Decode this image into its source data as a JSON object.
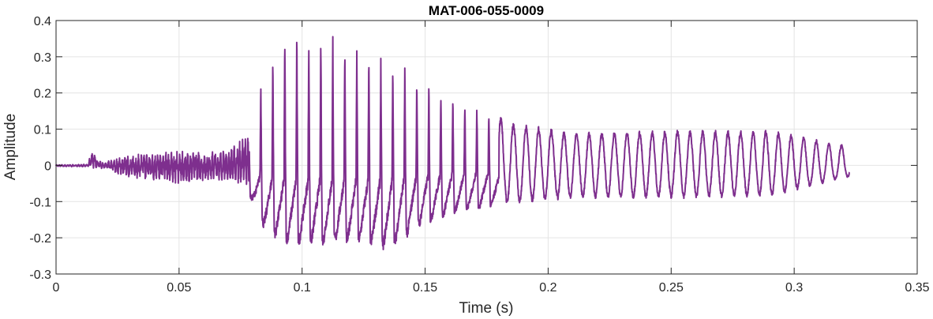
{
  "chart_data": {
    "type": "line",
    "title": "MAT-006-055-0009",
    "xlabel": "Time (s)",
    "ylabel": "Amplitude",
    "xlim": [
      0,
      0.35
    ],
    "ylim": [
      -0.3,
      0.4
    ],
    "xticks": [
      0,
      0.05,
      0.1,
      0.15,
      0.2,
      0.25,
      0.3,
      0.35
    ],
    "xtick_labels": [
      "0",
      "0.05",
      "0.1",
      "0.15",
      "0.2",
      "0.25",
      "0.3",
      "0.35"
    ],
    "yticks": [
      -0.3,
      -0.2,
      -0.1,
      0,
      0.1,
      0.2,
      0.3,
      0.4
    ],
    "ytick_labels": [
      "-0.3",
      "-0.2",
      "-0.1",
      "0",
      "0.1",
      "0.2",
      "0.3",
      "0.4"
    ],
    "grid": true,
    "line_color": "#7E2F8E",
    "series": [
      {
        "t_range": [
          0,
          0.3225
        ],
        "envelope": [
          {
            "t": 0.0,
            "max": 0.002,
            "min": -0.004
          },
          {
            "t": 0.013,
            "max": 0.003,
            "min": -0.004
          },
          {
            "t": 0.0145,
            "max": 0.045,
            "min": -0.01
          },
          {
            "t": 0.017,
            "max": 0.012,
            "min": -0.006
          },
          {
            "t": 0.02,
            "max": 0.01,
            "min": -0.012
          },
          {
            "t": 0.03,
            "max": 0.03,
            "min": -0.035
          },
          {
            "t": 0.05,
            "max": 0.04,
            "min": -0.05
          },
          {
            "t": 0.07,
            "max": 0.04,
            "min": -0.04
          },
          {
            "t": 0.078,
            "max": 0.09,
            "min": -0.07
          },
          {
            "t": 0.085,
            "max": 0.27,
            "min": -0.17
          },
          {
            "t": 0.093,
            "max": 0.35,
            "min": -0.2
          },
          {
            "t": 0.11,
            "max": 0.355,
            "min": -0.205
          },
          {
            "t": 0.125,
            "max": 0.29,
            "min": -0.2
          },
          {
            "t": 0.135,
            "max": 0.28,
            "min": -0.22
          },
          {
            "t": 0.15,
            "max": 0.23,
            "min": -0.15
          },
          {
            "t": 0.165,
            "max": 0.18,
            "min": -0.12
          },
          {
            "t": 0.185,
            "max": 0.11,
            "min": -0.1
          },
          {
            "t": 0.21,
            "max": 0.085,
            "min": -0.085
          },
          {
            "t": 0.25,
            "max": 0.09,
            "min": -0.085
          },
          {
            "t": 0.29,
            "max": 0.09,
            "min": -0.08
          },
          {
            "t": 0.3225,
            "max": 0.05,
            "min": -0.03
          }
        ]
      }
    ]
  }
}
